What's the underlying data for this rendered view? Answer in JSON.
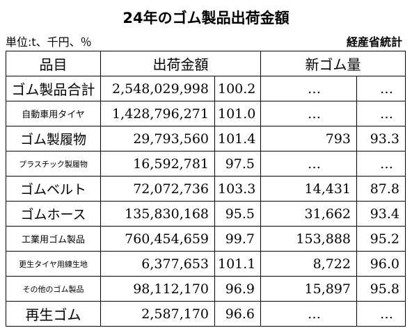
{
  "title": "24年のゴム製品出荷金額",
  "unit": "単位:t、千円、％",
  "source": "経産省統計",
  "headers": {
    "item": "品目",
    "shipment": "出荷金額",
    "rubber": "新ゴム量"
  },
  "rows": [
    {
      "name": "ゴム製品合計",
      "amount": "2,548,029,998",
      "ratio": "100.2",
      "rubber": "…",
      "rubber_ratio": "…"
    },
    {
      "name": "自動車用タイヤ",
      "amount": "1,428,796,271",
      "ratio": "101.0",
      "rubber": "…",
      "rubber_ratio": "…"
    },
    {
      "name": "ゴム製履物",
      "amount": "29,793,560",
      "ratio": "101.4",
      "rubber": "793",
      "rubber_ratio": "93.3"
    },
    {
      "name": "プラスチック製履物",
      "amount": "16,592,781",
      "ratio": "97.5",
      "rubber": "…",
      "rubber_ratio": "…"
    },
    {
      "name": "ゴムベルト",
      "amount": "72,072,736",
      "ratio": "103.3",
      "rubber": "14,431",
      "rubber_ratio": "87.8"
    },
    {
      "name": "ゴムホース",
      "amount": "135,830,168",
      "ratio": "95.5",
      "rubber": "31,662",
      "rubber_ratio": "93.4"
    },
    {
      "name": "工業用ゴム製品",
      "amount": "760,454,659",
      "ratio": "99.7",
      "rubber": "153,888",
      "rubber_ratio": "95.2"
    },
    {
      "name": "更生タイヤ用練生地",
      "amount": "6,377,653",
      "ratio": "101.1",
      "rubber": "8,722",
      "rubber_ratio": "96.0"
    },
    {
      "name": "その他のゴム製品",
      "amount": "98,112,170",
      "ratio": "96.9",
      "rubber": "15,897",
      "rubber_ratio": "95.8"
    },
    {
      "name": "再生ゴム",
      "amount": "2,587,170",
      "ratio": "96.6",
      "rubber": "…",
      "rubber_ratio": "…"
    }
  ]
}
